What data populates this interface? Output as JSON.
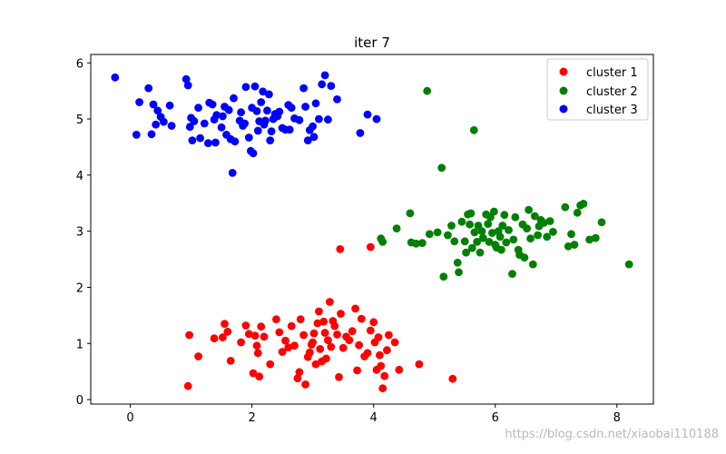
{
  "watermark": "https://blog.csdn.net/xiaobai110188",
  "chart_data": {
    "type": "scatter",
    "title": "iter 7",
    "xlabel": "",
    "ylabel": "",
    "xlim": [
      -0.65,
      8.6
    ],
    "ylim": [
      -0.08,
      6.15
    ],
    "xticks": [
      0,
      2,
      4,
      6,
      8
    ],
    "yticks": [
      0,
      1,
      2,
      3,
      4,
      5,
      6
    ],
    "grid": false,
    "legend_position": "top-right",
    "series": [
      {
        "name": "cluster 1",
        "color": "#ff0000",
        "points": [
          [
            0.95,
            0.24
          ],
          [
            0.97,
            1.15
          ],
          [
            1.12,
            0.77
          ],
          [
            1.38,
            1.09
          ],
          [
            1.52,
            1.11
          ],
          [
            1.55,
            1.35
          ],
          [
            1.6,
            1.21
          ],
          [
            1.65,
            0.69
          ],
          [
            1.82,
            1.02
          ],
          [
            1.9,
            1.32
          ],
          [
            1.95,
            1.17
          ],
          [
            2.02,
            0.47
          ],
          [
            2.05,
            1.14
          ],
          [
            2.08,
            0.96
          ],
          [
            2.1,
            0.83
          ],
          [
            2.12,
            0.41
          ],
          [
            2.15,
            1.3
          ],
          [
            2.2,
            1.12
          ],
          [
            2.3,
            0.63
          ],
          [
            2.4,
            1.43
          ],
          [
            2.45,
            1.2
          ],
          [
            2.5,
            0.85
          ],
          [
            2.55,
            1.05
          ],
          [
            2.6,
            0.93
          ],
          [
            2.65,
            1.31
          ],
          [
            2.7,
            0.96
          ],
          [
            2.75,
            0.38
          ],
          [
            2.78,
            0.49
          ],
          [
            2.8,
            1.43
          ],
          [
            2.85,
            1.15
          ],
          [
            2.88,
            0.27
          ],
          [
            2.92,
            0.76
          ],
          [
            2.95,
            0.84
          ],
          [
            2.98,
            0.98
          ],
          [
            3.0,
            1.02
          ],
          [
            3.02,
            1.18
          ],
          [
            3.05,
            0.63
          ],
          [
            3.08,
            1.36
          ],
          [
            3.1,
            1.57
          ],
          [
            3.12,
            0.9
          ],
          [
            3.15,
            0.68
          ],
          [
            3.18,
            1.39
          ],
          [
            3.2,
            1.19
          ],
          [
            3.22,
            0.73
          ],
          [
            3.25,
            1.06
          ],
          [
            3.28,
            1.74
          ],
          [
            3.3,
            0.94
          ],
          [
            3.33,
            1.4
          ],
          [
            3.36,
            1.31
          ],
          [
            3.4,
            1.16
          ],
          [
            3.43,
            0.4
          ],
          [
            3.46,
            1.53
          ],
          [
            3.5,
            0.92
          ],
          [
            3.55,
            1.12
          ],
          [
            3.6,
            1.06
          ],
          [
            3.65,
            1.22
          ],
          [
            3.7,
            1.62
          ],
          [
            3.73,
            0.52
          ],
          [
            3.76,
            0.97
          ],
          [
            3.8,
            1.44
          ],
          [
            3.85,
            0.77
          ],
          [
            3.9,
            0.83
          ],
          [
            3.95,
            1.23
          ],
          [
            4.0,
            1.38
          ],
          [
            4.02,
            1.02
          ],
          [
            4.05,
            0.53
          ],
          [
            4.08,
            1.11
          ],
          [
            4.1,
            0.79
          ],
          [
            4.12,
            0.6
          ],
          [
            4.15,
            0.2
          ],
          [
            4.18,
            0.42
          ],
          [
            4.22,
            0.88
          ],
          [
            4.25,
            1.15
          ],
          [
            4.35,
            1.02
          ],
          [
            4.42,
            0.53
          ],
          [
            4.75,
            0.63
          ],
          [
            5.3,
            0.37
          ],
          [
            3.45,
            2.68
          ],
          [
            3.95,
            2.72
          ]
        ]
      },
      {
        "name": "cluster 2",
        "color": "#008000",
        "points": [
          [
            4.12,
            2.87
          ],
          [
            4.15,
            2.81
          ],
          [
            4.38,
            3.05
          ],
          [
            4.6,
            3.32
          ],
          [
            4.62,
            2.8
          ],
          [
            4.7,
            2.78
          ],
          [
            4.8,
            2.79
          ],
          [
            4.88,
            5.5
          ],
          [
            4.92,
            2.95
          ],
          [
            5.05,
            2.98
          ],
          [
            5.12,
            4.13
          ],
          [
            5.15,
            2.19
          ],
          [
            5.22,
            2.93
          ],
          [
            5.28,
            3.1
          ],
          [
            5.33,
            2.82
          ],
          [
            5.38,
            2.44
          ],
          [
            5.4,
            2.27
          ],
          [
            5.45,
            3.17
          ],
          [
            5.5,
            2.82
          ],
          [
            5.52,
            2.62
          ],
          [
            5.55,
            3.3
          ],
          [
            5.58,
            3.12
          ],
          [
            5.6,
            3.32
          ],
          [
            5.62,
            2.7
          ],
          [
            5.65,
            4.8
          ],
          [
            5.66,
            2.98
          ],
          [
            5.7,
            2.81
          ],
          [
            5.72,
            3.1
          ],
          [
            5.75,
            2.62
          ],
          [
            5.78,
            3.0
          ],
          [
            5.8,
            2.88
          ],
          [
            5.85,
            3.3
          ],
          [
            5.88,
            3.13
          ],
          [
            5.9,
            2.81
          ],
          [
            5.92,
            3.25
          ],
          [
            5.95,
            2.97
          ],
          [
            5.98,
            3.35
          ],
          [
            6.0,
            2.76
          ],
          [
            6.02,
            2.71
          ],
          [
            6.05,
            3.0
          ],
          [
            6.08,
            2.9
          ],
          [
            6.1,
            2.67
          ],
          [
            6.12,
            3.1
          ],
          [
            6.15,
            3.29
          ],
          [
            6.18,
            2.8
          ],
          [
            6.22,
            3.02
          ],
          [
            6.28,
            2.24
          ],
          [
            6.3,
            2.85
          ],
          [
            6.33,
            3.25
          ],
          [
            6.38,
            2.67
          ],
          [
            6.4,
            2.58
          ],
          [
            6.45,
            3.12
          ],
          [
            6.48,
            2.53
          ],
          [
            6.52,
            3.05
          ],
          [
            6.55,
            3.38
          ],
          [
            6.58,
            2.87
          ],
          [
            6.62,
            2.41
          ],
          [
            6.65,
            3.27
          ],
          [
            6.7,
            2.93
          ],
          [
            6.72,
            3.09
          ],
          [
            6.75,
            3.2
          ],
          [
            6.8,
            3.15
          ],
          [
            6.85,
            2.9
          ],
          [
            6.9,
            3.18
          ],
          [
            6.95,
            2.99
          ],
          [
            7.15,
            3.43
          ],
          [
            7.2,
            2.73
          ],
          [
            7.25,
            2.95
          ],
          [
            7.3,
            2.76
          ],
          [
            7.35,
            3.33
          ],
          [
            7.4,
            3.46
          ],
          [
            7.45,
            3.49
          ],
          [
            7.55,
            2.85
          ],
          [
            7.65,
            2.88
          ],
          [
            7.75,
            3.16
          ],
          [
            8.2,
            2.41
          ]
        ]
      },
      {
        "name": "cluster 3",
        "color": "#0000ff",
        "points": [
          [
            -0.25,
            5.74
          ],
          [
            0.1,
            4.72
          ],
          [
            0.15,
            5.3
          ],
          [
            0.3,
            5.55
          ],
          [
            0.35,
            4.73
          ],
          [
            0.38,
            5.26
          ],
          [
            0.42,
            4.9
          ],
          [
            0.45,
            5.15
          ],
          [
            0.5,
            5.04
          ],
          [
            0.55,
            4.95
          ],
          [
            0.65,
            5.24
          ],
          [
            0.68,
            4.88
          ],
          [
            0.92,
            5.71
          ],
          [
            0.95,
            5.6
          ],
          [
            0.98,
            4.86
          ],
          [
            1.0,
            5.02
          ],
          [
            1.02,
            4.62
          ],
          [
            1.05,
            4.96
          ],
          [
            1.12,
            5.2
          ],
          [
            1.15,
            4.66
          ],
          [
            1.22,
            4.92
          ],
          [
            1.28,
            4.57
          ],
          [
            1.3,
            5.29
          ],
          [
            1.35,
            5.26
          ],
          [
            1.38,
            4.99
          ],
          [
            1.4,
            4.58
          ],
          [
            1.42,
            5.07
          ],
          [
            1.5,
            4.85
          ],
          [
            1.52,
            5.05
          ],
          [
            1.55,
            5.22
          ],
          [
            1.58,
            4.72
          ],
          [
            1.62,
            5.16
          ],
          [
            1.65,
            4.64
          ],
          [
            1.68,
            4.04
          ],
          [
            1.7,
            5.37
          ],
          [
            1.72,
            4.6
          ],
          [
            1.8,
            4.97
          ],
          [
            1.82,
            5.12
          ],
          [
            1.85,
            4.88
          ],
          [
            1.88,
            4.92
          ],
          [
            1.9,
            5.57
          ],
          [
            1.95,
            4.67
          ],
          [
            1.98,
            4.43
          ],
          [
            2.0,
            5.2
          ],
          [
            2.02,
            4.39
          ],
          [
            2.05,
            5.58
          ],
          [
            2.08,
            5.14
          ],
          [
            2.1,
            4.79
          ],
          [
            2.12,
            4.96
          ],
          [
            2.15,
            5.3
          ],
          [
            2.18,
            5.49
          ],
          [
            2.2,
            4.9
          ],
          [
            2.22,
            4.97
          ],
          [
            2.25,
            5.15
          ],
          [
            2.28,
            5.44
          ],
          [
            2.3,
            4.62
          ],
          [
            2.32,
            4.78
          ],
          [
            2.35,
            5.0
          ],
          [
            2.38,
            5.09
          ],
          [
            2.42,
            5.05
          ],
          [
            2.45,
            5.13
          ],
          [
            2.5,
            4.84
          ],
          [
            2.55,
            4.81
          ],
          [
            2.6,
            5.25
          ],
          [
            2.62,
            4.81
          ],
          [
            2.65,
            5.2
          ],
          [
            2.7,
            5.01
          ],
          [
            2.78,
            4.98
          ],
          [
            2.85,
            5.55
          ],
          [
            2.88,
            5.22
          ],
          [
            2.92,
            4.62
          ],
          [
            2.95,
            4.8
          ],
          [
            3.0,
            4.87
          ],
          [
            3.02,
            4.68
          ],
          [
            3.05,
            5.28
          ],
          [
            3.1,
            5.0
          ],
          [
            3.15,
            5.62
          ],
          [
            3.2,
            5.78
          ],
          [
            3.25,
            4.99
          ],
          [
            3.3,
            5.59
          ],
          [
            3.4,
            5.35
          ],
          [
            3.78,
            4.75
          ],
          [
            3.9,
            5.08
          ],
          [
            4.05,
            5.0
          ]
        ]
      }
    ]
  }
}
